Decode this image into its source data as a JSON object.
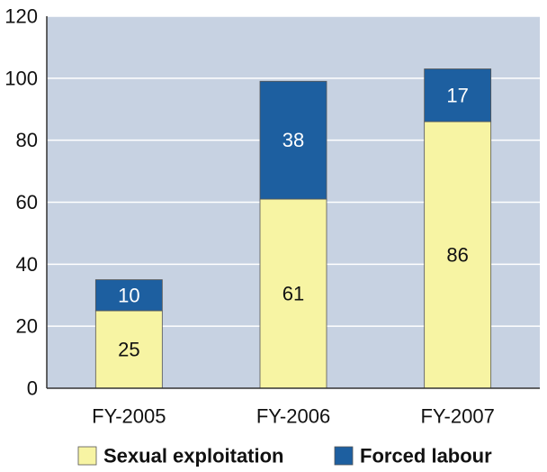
{
  "chart_data": {
    "type": "bar",
    "stacked": true,
    "categories": [
      "FY-2005",
      "FY-2006",
      "FY-2007"
    ],
    "series": [
      {
        "name": "Sexual exploitation",
        "values": [
          25,
          61,
          86
        ],
        "color": "#f7f4a3"
      },
      {
        "name": "Forced labour",
        "values": [
          10,
          38,
          17
        ],
        "color": "#1d5fa0"
      }
    ],
    "ylim": [
      0,
      120
    ],
    "yticks": [
      "0",
      "20",
      "40",
      "60",
      "80",
      "100",
      "120"
    ],
    "grid": true,
    "legend_position": "bottom",
    "plot_background": "#c7d2e2",
    "grid_color": "#ffffff",
    "label_color_light": "#ffffff",
    "label_color_dark": "#111111"
  }
}
